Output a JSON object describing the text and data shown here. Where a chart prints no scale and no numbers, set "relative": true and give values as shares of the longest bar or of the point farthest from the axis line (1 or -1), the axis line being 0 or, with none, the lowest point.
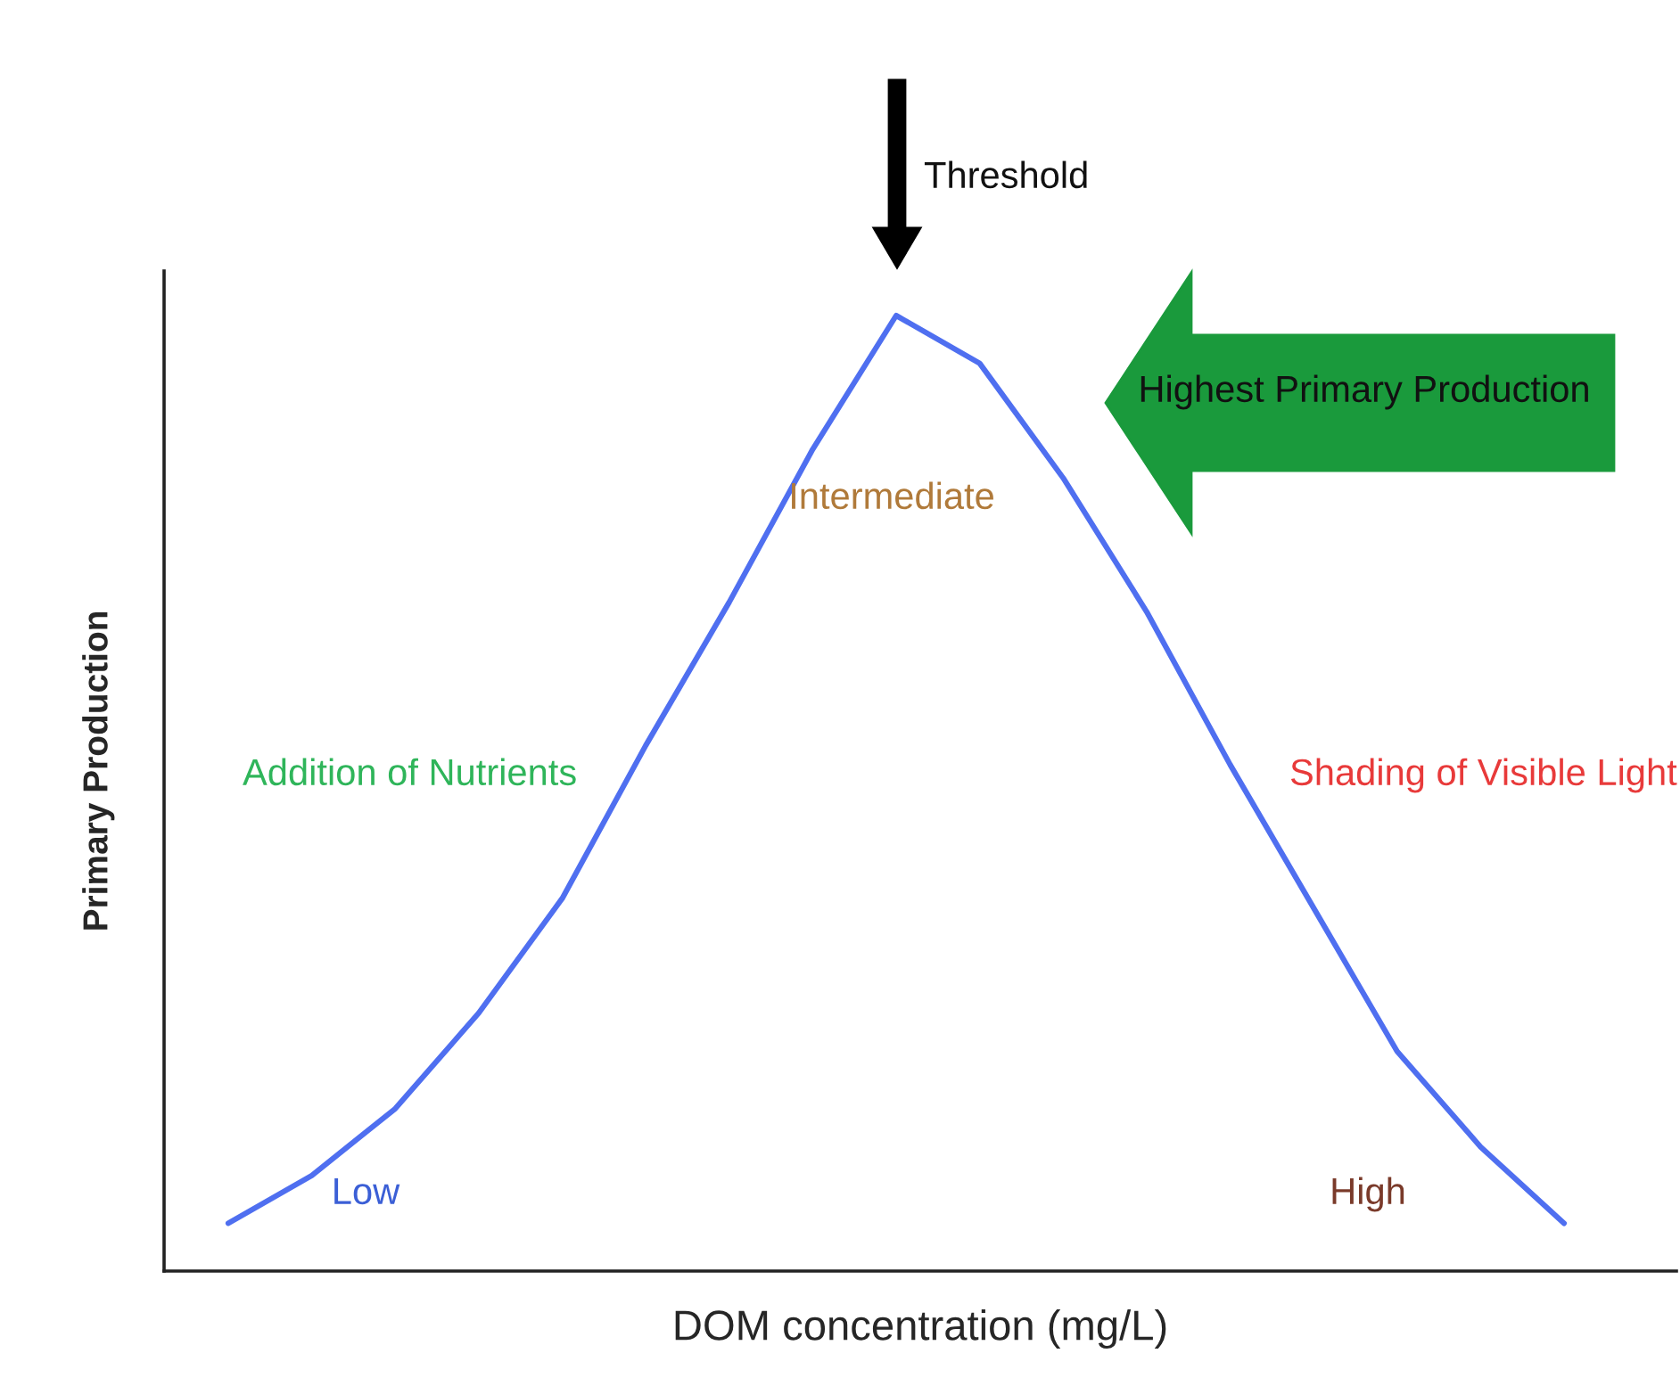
{
  "chart_data": {
    "type": "line",
    "relative": true,
    "xlabel": "DOM concentration (mg/L)",
    "ylabel": "Primary Production",
    "categories": [
      null,
      null,
      null,
      null,
      null,
      null,
      null,
      null,
      null,
      null,
      null,
      null,
      null,
      null,
      null,
      null,
      null
    ],
    "series": [
      {
        "color": "#4f6ff0",
        "values": [
          0.05,
          0.1,
          0.17,
          0.27,
          0.39,
          0.55,
          0.7,
          0.86,
          1.0,
          0.95,
          0.83,
          0.69,
          0.53,
          0.38,
          0.23,
          0.13,
          0.05
        ]
      }
    ],
    "annotations": [
      "Threshold",
      "Highest Primary Production",
      "Intermediate",
      "Addition of Nutrients",
      "Shading of Visible Light",
      "Low",
      "High"
    ],
    "marker": "none",
    "line_style": "solid",
    "grid": false,
    "legend": false
  }
}
